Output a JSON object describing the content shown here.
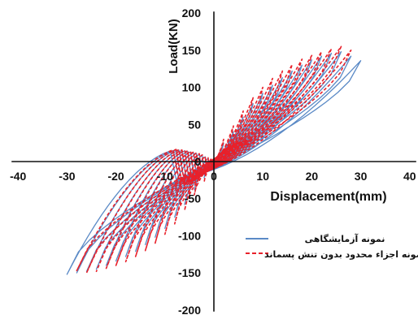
{
  "chart_data": {
    "type": "line",
    "xlabel": "Displacement(mm)",
    "ylabel": "Load(KN)",
    "xlim": [
      -40,
      40
    ],
    "ylim": [
      -200,
      200
    ],
    "x_ticks": [
      -40,
      -30,
      -20,
      -10,
      0,
      10,
      20,
      30,
      40
    ],
    "y_ticks": [
      -200,
      -150,
      -100,
      -50,
      0,
      50,
      100,
      150,
      200
    ],
    "grid": false,
    "legend_position": "right",
    "colors": {
      "experimental": "#5b8ac6",
      "fem": "#e8212b"
    },
    "series": [
      {
        "name": "نمونه آزمایشگاهی",
        "style": "solid",
        "peak_displacements": [
          2,
          4,
          6,
          8,
          10,
          12,
          14,
          16,
          18,
          20,
          22,
          24,
          26,
          28,
          30
        ],
        "peak_positive_loads": [
          25,
          40,
          60,
          78,
          92,
          103,
          113,
          122,
          130,
          137,
          142,
          146,
          148,
          142,
          136
        ],
        "peak_negative_loads": [
          -22,
          -38,
          -58,
          -75,
          -90,
          -102,
          -112,
          -121,
          -128,
          -134,
          -140,
          -145,
          -148,
          -150,
          -152
        ]
      },
      {
        "name": "نمونه اجزاء محدود بدون تنش پسماند",
        "style": "dashed",
        "peak_displacements": [
          2,
          4,
          6,
          8,
          10,
          12,
          14,
          16,
          18,
          20,
          22,
          24,
          26,
          28
        ],
        "peak_positive_loads": [
          30,
          48,
          68,
          86,
          100,
          112,
          122,
          131,
          138,
          143,
          148,
          152,
          155,
          150
        ],
        "peak_negative_loads": [
          -28,
          -45,
          -66,
          -84,
          -98,
          -110,
          -120,
          -128,
          -135,
          -140,
          -144,
          -148,
          -150,
          -147
        ]
      }
    ]
  }
}
